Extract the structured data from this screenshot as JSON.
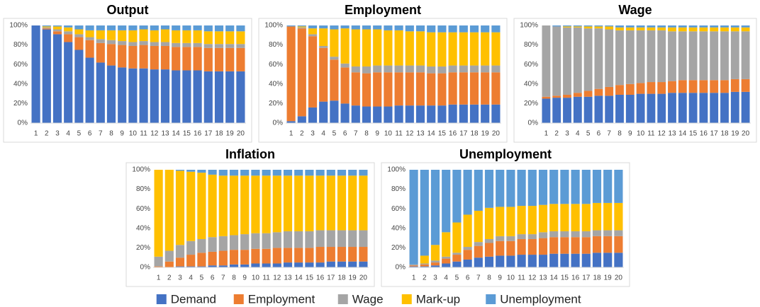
{
  "chart_data": [
    {
      "type": "bar",
      "stacked": true,
      "title": "Output",
      "categories": [
        "1",
        "2",
        "3",
        "4",
        "5",
        "6",
        "7",
        "8",
        "9",
        "10",
        "11",
        "12",
        "13",
        "14",
        "15",
        "16",
        "17",
        "18",
        "19",
        "20"
      ],
      "ylim": [
        0,
        100
      ],
      "yticks": [
        {
          "value": 0,
          "label": "0%"
        },
        {
          "value": 20,
          "label": "20%"
        },
        {
          "value": 40,
          "label": "40%"
        },
        {
          "value": 60,
          "label": "60%"
        },
        {
          "value": 80,
          "label": "80%"
        },
        {
          "value": 100,
          "label": "100%"
        }
      ],
      "series": [
        {
          "name": "Demand",
          "color": "#4472c4",
          "values": [
            100,
            96,
            91,
            83,
            75,
            67,
            62,
            59,
            57,
            56,
            56,
            55,
            55,
            54,
            54,
            54,
            53,
            53,
            53,
            53
          ]
        },
        {
          "name": "Employment",
          "color": "#ed7d31",
          "values": [
            0,
            1,
            3,
            8,
            13,
            18,
            20,
            22,
            23,
            23,
            24,
            24,
            24,
            24,
            24,
            24,
            24,
            24,
            24,
            24
          ]
        },
        {
          "name": "Wage",
          "color": "#a5a5a5",
          "values": [
            0,
            1,
            2,
            3,
            3,
            3,
            4,
            4,
            4,
            4,
            4,
            4,
            4,
            4,
            4,
            4,
            4,
            4,
            4,
            4
          ]
        },
        {
          "name": "Mark-up",
          "color": "#ffc000",
          "values": [
            0,
            1,
            3,
            4,
            5,
            7,
            9,
            10,
            11,
            12,
            12,
            12,
            13,
            13,
            13,
            13,
            13,
            13,
            13,
            13
          ]
        },
        {
          "name": "Unemployment",
          "color": "#5b9bd5",
          "values": [
            0,
            1,
            1,
            2,
            4,
            5,
            5,
            5,
            5,
            5,
            4,
            5,
            4,
            5,
            5,
            5,
            6,
            6,
            6,
            6
          ]
        }
      ]
    },
    {
      "type": "bar",
      "stacked": true,
      "title": "Employment",
      "categories": [
        "1",
        "2",
        "3",
        "4",
        "5",
        "6",
        "7",
        "8",
        "9",
        "10",
        "11",
        "12",
        "13",
        "14",
        "15",
        "16",
        "17",
        "18",
        "19",
        "20"
      ],
      "ylim": [
        0,
        100
      ],
      "yticks": [
        {
          "value": 0,
          "label": "0%"
        },
        {
          "value": 20,
          "label": "20%"
        },
        {
          "value": 40,
          "label": "40%"
        },
        {
          "value": 60,
          "label": "60%"
        },
        {
          "value": 80,
          "label": "80%"
        },
        {
          "value": 100,
          "label": "100%"
        }
      ],
      "series": [
        {
          "name": "Demand",
          "color": "#4472c4",
          "values": [
            2,
            7,
            16,
            22,
            23,
            20,
            18,
            17,
            17,
            17,
            18,
            18,
            18,
            18,
            18,
            19,
            19,
            19,
            19,
            19
          ]
        },
        {
          "name": "Employment",
          "color": "#ed7d31",
          "values": [
            97,
            90,
            73,
            55,
            42,
            37,
            34,
            34,
            35,
            35,
            34,
            34,
            34,
            33,
            33,
            33,
            33,
            33,
            33,
            33
          ]
        },
        {
          "name": "Wage",
          "color": "#a5a5a5",
          "values": [
            0,
            1,
            2,
            2,
            3,
            4,
            6,
            7,
            7,
            7,
            7,
            7,
            7,
            7,
            7,
            7,
            7,
            7,
            7,
            7
          ]
        },
        {
          "name": "Mark-up",
          "color": "#ffc000",
          "values": [
            0,
            1,
            6,
            18,
            28,
            36,
            38,
            38,
            37,
            36,
            36,
            35,
            35,
            35,
            35,
            34,
            34,
            34,
            34,
            34
          ]
        },
        {
          "name": "Unemployment",
          "color": "#5b9bd5",
          "values": [
            1,
            1,
            3,
            3,
            4,
            3,
            4,
            4,
            4,
            5,
            5,
            6,
            6,
            7,
            7,
            7,
            7,
            7,
            7,
            7
          ]
        }
      ]
    },
    {
      "type": "bar",
      "stacked": true,
      "title": "Wage",
      "categories": [
        "1",
        "2",
        "3",
        "4",
        "5",
        "6",
        "7",
        "8",
        "9",
        "10",
        "11",
        "12",
        "13",
        "14",
        "15",
        "16",
        "17",
        "18",
        "19",
        "20"
      ],
      "ylim": [
        0,
        100
      ],
      "yticks": [
        {
          "value": 0,
          "label": "0%"
        },
        {
          "value": 20,
          "label": "20%"
        },
        {
          "value": 40,
          "label": "40%"
        },
        {
          "value": 60,
          "label": "60%"
        },
        {
          "value": 80,
          "label": "80%"
        },
        {
          "value": 100,
          "label": "100%"
        }
      ],
      "series": [
        {
          "name": "Demand",
          "color": "#4472c4",
          "values": [
            25,
            26,
            26,
            27,
            27,
            28,
            28,
            29,
            29,
            30,
            30,
            30,
            31,
            31,
            31,
            31,
            31,
            31,
            32,
            32
          ]
        },
        {
          "name": "Employment",
          "color": "#ed7d31",
          "values": [
            2,
            2,
            3,
            4,
            6,
            7,
            9,
            10,
            11,
            11,
            12,
            12,
            12,
            13,
            13,
            13,
            13,
            13,
            13,
            13
          ]
        },
        {
          "name": "Wage",
          "color": "#a5a5a5",
          "values": [
            73,
            71,
            69,
            67,
            64,
            62,
            59,
            56,
            55,
            54,
            53,
            53,
            51,
            50,
            50,
            50,
            50,
            50,
            49,
            49
          ]
        },
        {
          "name": "Mark-up",
          "color": "#ffc000",
          "values": [
            0,
            0,
            1,
            1,
            2,
            2,
            3,
            3,
            3,
            3,
            3,
            3,
            4,
            4,
            4,
            4,
            4,
            4,
            4,
            4
          ]
        },
        {
          "name": "Unemployment",
          "color": "#5b9bd5",
          "values": [
            0,
            1,
            1,
            1,
            1,
            1,
            1,
            2,
            2,
            2,
            2,
            2,
            2,
            2,
            2,
            2,
            2,
            2,
            2,
            2
          ]
        }
      ]
    },
    {
      "type": "bar",
      "stacked": true,
      "title": "Inflation",
      "categories": [
        "1",
        "2",
        "3",
        "4",
        "5",
        "6",
        "7",
        "8",
        "9",
        "10",
        "11",
        "12",
        "13",
        "14",
        "15",
        "16",
        "17",
        "18",
        "19",
        "20"
      ],
      "ylim": [
        0,
        100
      ],
      "yticks": [
        {
          "value": 0,
          "label": "0%"
        },
        {
          "value": 20,
          "label": "20%"
        },
        {
          "value": 40,
          "label": "40%"
        },
        {
          "value": 60,
          "label": "60%"
        },
        {
          "value": 80,
          "label": "80%"
        },
        {
          "value": 100,
          "label": "100%"
        }
      ],
      "series": [
        {
          "name": "Demand",
          "color": "#4472c4",
          "values": [
            0,
            0,
            1,
            1,
            1,
            2,
            2,
            3,
            3,
            4,
            4,
            4,
            5,
            5,
            5,
            5,
            6,
            6,
            6,
            6
          ]
        },
        {
          "name": "Employment",
          "color": "#ed7d31",
          "values": [
            1,
            6,
            9,
            12,
            14,
            14,
            15,
            15,
            15,
            15,
            15,
            16,
            15,
            15,
            15,
            16,
            15,
            15,
            15,
            15
          ]
        },
        {
          "name": "Wage",
          "color": "#a5a5a5",
          "values": [
            10,
            11,
            13,
            14,
            14,
            15,
            15,
            15,
            16,
            16,
            16,
            16,
            17,
            17,
            17,
            17,
            17,
            17,
            17,
            17
          ]
        },
        {
          "name": "Mark-up",
          "color": "#ffc000",
          "values": [
            89,
            83,
            76,
            71,
            68,
            64,
            62,
            61,
            60,
            59,
            59,
            58,
            57,
            57,
            57,
            56,
            56,
            56,
            56,
            56
          ]
        },
        {
          "name": "Unemployment",
          "color": "#5b9bd5",
          "values": [
            0,
            0,
            1,
            2,
            3,
            5,
            6,
            6,
            6,
            6,
            6,
            6,
            6,
            6,
            6,
            6,
            6,
            6,
            6,
            6
          ]
        }
      ]
    },
    {
      "type": "bar",
      "stacked": true,
      "title": "Unemployment",
      "categories": [
        "1",
        "2",
        "3",
        "4",
        "5",
        "6",
        "7",
        "8",
        "9",
        "10",
        "11",
        "12",
        "13",
        "14",
        "15",
        "16",
        "17",
        "18",
        "19",
        "20"
      ],
      "ylim": [
        0,
        100
      ],
      "yticks": [
        {
          "value": 0,
          "label": "0%"
        },
        {
          "value": 20,
          "label": "20%"
        },
        {
          "value": 40,
          "label": "40%"
        },
        {
          "value": 60,
          "label": "60%"
        },
        {
          "value": 80,
          "label": "80%"
        },
        {
          "value": 100,
          "label": "100%"
        }
      ],
      "series": [
        {
          "name": "Demand",
          "color": "#4472c4",
          "values": [
            1,
            1,
            2,
            4,
            6,
            8,
            10,
            11,
            12,
            12,
            13,
            13,
            13,
            14,
            14,
            14,
            14,
            15,
            15,
            15
          ]
        },
        {
          "name": "Employment",
          "color": "#ed7d31",
          "values": [
            1,
            2,
            3,
            5,
            7,
            10,
            12,
            14,
            15,
            15,
            16,
            16,
            17,
            17,
            17,
            17,
            17,
            17,
            17,
            17
          ]
        },
        {
          "name": "Wage",
          "color": "#a5a5a5",
          "values": [
            1,
            1,
            2,
            2,
            2,
            3,
            4,
            4,
            5,
            5,
            5,
            5,
            6,
            6,
            6,
            6,
            6,
            6,
            6,
            6
          ]
        },
        {
          "name": "Mark-up",
          "color": "#ffc000",
          "values": [
            0,
            8,
            16,
            25,
            31,
            33,
            32,
            32,
            30,
            30,
            29,
            29,
            28,
            28,
            28,
            28,
            28,
            28,
            28,
            28
          ]
        },
        {
          "name": "Unemployment",
          "color": "#5b9bd5",
          "values": [
            97,
            88,
            77,
            64,
            54,
            46,
            42,
            39,
            38,
            38,
            37,
            37,
            36,
            35,
            35,
            35,
            35,
            34,
            34,
            34
          ]
        }
      ]
    }
  ]
}
